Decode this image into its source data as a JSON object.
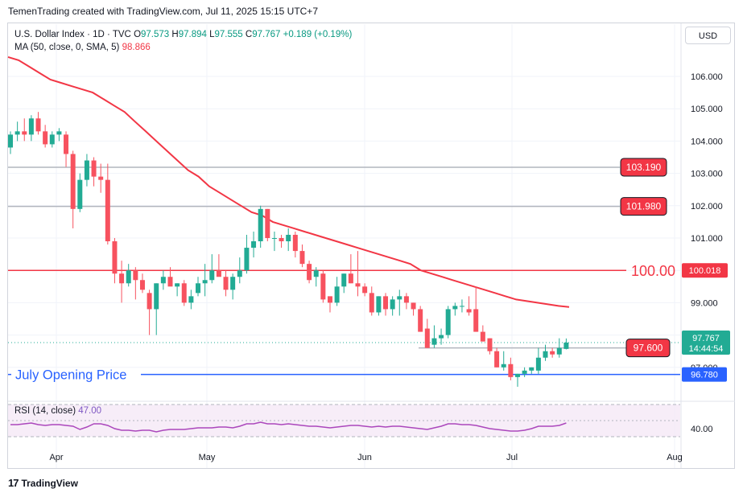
{
  "header": {
    "credit": "TemenTrading created with TradingView.com, Jul 11, 2025 15:15 UTC+7"
  },
  "legend": {
    "symbol": "U.S. Dollar Index · 1D · TVC",
    "open_label": "O",
    "open": "97.573",
    "high_label": "H",
    "high": "97.894",
    "low_label": "L",
    "low": "97.555",
    "close_label": "C",
    "close": "97.767",
    "change": "+0.189 (+0.19%)",
    "ma_label": "MA (50, close, 0, SMA, 5)",
    "ma_value": "98.866"
  },
  "currency_button": "USD",
  "rsi_legend": {
    "label": "RSI (14, close)",
    "value": "47.00"
  },
  "logo": {
    "mark": "17",
    "text": "TradingView"
  },
  "colors": {
    "up": "#22ab94",
    "down": "#f7525f",
    "ma": "#f23645",
    "rsi": "#ab47bc",
    "blue": "#2962ff",
    "red_line": "#f23645",
    "grey_line": "#b2b5be"
  },
  "chart_data": {
    "type": "candlestick",
    "ylim": [
      96.3,
      107.0
    ],
    "y_ticks": [
      "106.000",
      "105.000",
      "104.000",
      "103.000",
      "102.000",
      "101.000",
      "100.000",
      "99.000",
      "98.000",
      "97.000"
    ],
    "x_ticks": [
      "Apr",
      "May",
      "Jun",
      "Jul",
      "Aug"
    ],
    "candles": [
      [
        103.8,
        104.3,
        103.6,
        104.2
      ],
      [
        104.2,
        104.6,
        104.0,
        104.3
      ],
      [
        104.3,
        104.7,
        104.0,
        104.2
      ],
      [
        104.2,
        104.8,
        104.0,
        104.7
      ],
      [
        104.7,
        104.9,
        104.2,
        104.3
      ],
      [
        104.3,
        104.5,
        103.8,
        103.9
      ],
      [
        103.9,
        104.3,
        103.8,
        104.2
      ],
      [
        104.2,
        104.4,
        104.0,
        104.3
      ],
      [
        104.2,
        104.3,
        103.2,
        103.6
      ],
      [
        103.6,
        103.7,
        101.3,
        101.9
      ],
      [
        101.9,
        103.0,
        101.8,
        102.8
      ],
      [
        102.8,
        103.6,
        102.6,
        103.4
      ],
      [
        103.4,
        103.5,
        102.6,
        102.9
      ],
      [
        102.9,
        103.3,
        102.4,
        102.8
      ],
      [
        102.8,
        103.3,
        100.8,
        100.9
      ],
      [
        100.9,
        101.0,
        99.6,
        99.9
      ],
      [
        99.9,
        100.3,
        99.0,
        99.6
      ],
      [
        99.6,
        100.2,
        99.5,
        100.0
      ],
      [
        100.0,
        100.1,
        99.1,
        99.7
      ],
      [
        99.7,
        99.9,
        99.3,
        99.4
      ],
      [
        99.3,
        99.4,
        98.0,
        98.8
      ],
      [
        98.8,
        99.6,
        98.0,
        99.6
      ],
      [
        99.6,
        100.0,
        99.4,
        99.8
      ],
      [
        99.8,
        100.1,
        99.6,
        99.5
      ],
      [
        99.5,
        99.6,
        99.2,
        99.6
      ],
      [
        99.6,
        99.7,
        98.9,
        99.0
      ],
      [
        99.0,
        99.4,
        98.8,
        99.2
      ],
      [
        99.3,
        99.8,
        99.2,
        99.6
      ],
      [
        99.6,
        100.2,
        99.2,
        99.7
      ],
      [
        99.7,
        100.5,
        99.6,
        100.0
      ],
      [
        100.0,
        100.5,
        99.9,
        99.8
      ],
      [
        99.8,
        100.0,
        99.2,
        99.4
      ],
      [
        99.4,
        99.9,
        99.1,
        99.8
      ],
      [
        99.8,
        100.4,
        99.6,
        100.0
      ],
      [
        100.0,
        101.1,
        99.9,
        100.7
      ],
      [
        100.7,
        101.2,
        100.4,
        100.9
      ],
      [
        100.9,
        102.0,
        100.7,
        101.9
      ],
      [
        101.9,
        101.9,
        100.9,
        101.0
      ],
      [
        101.0,
        101.2,
        100.6,
        101.0
      ],
      [
        101.0,
        101.1,
        100.7,
        100.9
      ],
      [
        100.9,
        101.3,
        100.6,
        101.1
      ],
      [
        101.1,
        101.2,
        100.4,
        100.6
      ],
      [
        100.6,
        100.8,
        100.1,
        100.2
      ],
      [
        100.2,
        100.3,
        99.6,
        99.7
      ],
      [
        99.8,
        100.1,
        99.5,
        100.0
      ],
      [
        99.9,
        100.0,
        99.0,
        99.1
      ],
      [
        99.2,
        99.1,
        98.7,
        99.0
      ],
      [
        99.0,
        99.8,
        98.9,
        99.5
      ],
      [
        99.5,
        99.9,
        99.3,
        99.9
      ],
      [
        99.9,
        100.5,
        99.6,
        99.6
      ],
      [
        99.6,
        100.6,
        99.2,
        99.5
      ],
      [
        99.5,
        99.6,
        99.2,
        99.3
      ],
      [
        99.3,
        99.5,
        98.6,
        98.7
      ],
      [
        98.7,
        99.2,
        98.6,
        99.2
      ],
      [
        99.2,
        99.3,
        98.6,
        98.8
      ],
      [
        98.8,
        99.2,
        98.6,
        99.1
      ],
      [
        99.1,
        99.4,
        98.6,
        99.2
      ],
      [
        99.2,
        99.3,
        98.8,
        99.0
      ],
      [
        99.0,
        99.0,
        98.6,
        98.8
      ],
      [
        98.8,
        98.9,
        98.1,
        98.1
      ],
      [
        98.2,
        98.5,
        97.6,
        97.6
      ],
      [
        97.7,
        98.3,
        97.6,
        97.9
      ],
      [
        97.9,
        98.2,
        97.7,
        98.0
      ],
      [
        98.0,
        98.9,
        97.9,
        98.8
      ],
      [
        98.8,
        99.0,
        98.6,
        98.9
      ],
      [
        98.9,
        99.1,
        98.7,
        98.9
      ],
      [
        98.8,
        99.2,
        98.6,
        98.7
      ],
      [
        98.8,
        99.5,
        98.1,
        98.1
      ],
      [
        98.1,
        98.3,
        97.8,
        97.8
      ],
      [
        97.9,
        97.9,
        97.4,
        97.5
      ],
      [
        97.5,
        97.6,
        97.0,
        97.0
      ],
      [
        97.0,
        97.5,
        96.9,
        97.1
      ],
      [
        97.1,
        97.3,
        96.6,
        96.7
      ],
      [
        96.7,
        96.8,
        96.4,
        96.8
      ],
      [
        96.8,
        97.0,
        96.7,
        96.9
      ],
      [
        96.9,
        97.0,
        96.8,
        97.0
      ],
      [
        96.9,
        97.6,
        96.8,
        97.3
      ],
      [
        97.3,
        97.7,
        97.2,
        97.5
      ],
      [
        97.5,
        97.6,
        97.3,
        97.4
      ],
      [
        97.4,
        97.9,
        97.3,
        97.6
      ],
      [
        97.57,
        97.894,
        97.555,
        97.767
      ]
    ],
    "ma_series": {
      "name": "MA (50, close, 0, SMA, 5)",
      "values": [
        106.6,
        106.5,
        106.3,
        106.1,
        105.9,
        105.8,
        105.7,
        105.6,
        105.5,
        105.3,
        105.1,
        104.9,
        104.6,
        104.3,
        104.0,
        103.7,
        103.4,
        103.1,
        102.9,
        102.6,
        102.4,
        102.2,
        102.0,
        101.8,
        101.7,
        101.5,
        101.4,
        101.3,
        101.2,
        101.1,
        101.0,
        100.9,
        100.8,
        100.7,
        100.6,
        100.5,
        100.4,
        100.3,
        100.2,
        100.0,
        99.9,
        99.8,
        99.7,
        99.6,
        99.5,
        99.4,
        99.3,
        99.2,
        99.1,
        99.05,
        99.0,
        98.95,
        98.9,
        98.866
      ]
    },
    "levels": [
      {
        "name": "103.190",
        "value": 103.19,
        "kind": "grey"
      },
      {
        "name": "101.980",
        "value": 101.98,
        "kind": "grey"
      },
      {
        "name": "100.00",
        "value": 100.0,
        "kind": "red"
      },
      {
        "name": "97.600",
        "value": 97.6,
        "kind": "grey"
      },
      {
        "name": "96.780",
        "value": 96.78,
        "kind": "blue"
      }
    ],
    "level_labels": {
      "l103": "103.190",
      "l102": "101.980",
      "l100_big": "100.00",
      "l100_axis": "100.018",
      "l976": "97.600",
      "last_price": "97.767",
      "countdown": "14:44:54",
      "july_label": "July Opening Price",
      "july_axis": "96.780"
    },
    "rsi": {
      "name": "RSI (14, close)",
      "ylim": [
        20,
        80
      ],
      "y_tick": "40.00",
      "values": [
        45,
        45,
        46,
        47,
        45,
        44,
        45,
        45,
        44,
        43,
        39,
        42,
        46,
        46,
        44,
        40,
        38,
        38,
        37,
        38,
        38,
        36,
        38,
        39,
        39,
        39,
        40,
        41,
        41,
        41,
        42,
        42,
        41,
        43,
        46,
        46,
        48,
        46,
        46,
        45,
        46,
        45,
        44,
        43,
        43,
        42,
        41,
        42,
        43,
        44,
        44,
        43,
        42,
        43,
        42,
        43,
        43,
        42,
        41,
        40,
        39,
        41,
        43,
        46,
        46,
        45,
        45,
        44,
        42,
        40,
        39,
        38,
        37,
        37,
        38,
        40,
        43,
        43,
        43,
        44,
        47
      ]
    }
  }
}
